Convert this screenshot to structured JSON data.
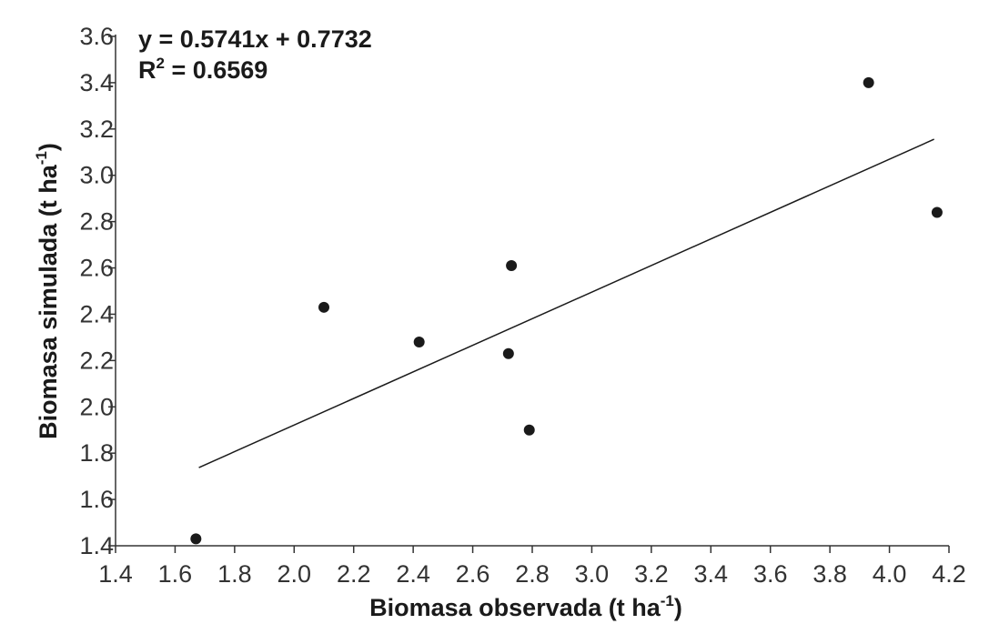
{
  "chart_data": {
    "type": "scatter",
    "title": "",
    "xlabel_main": "Biomasa observada (t ha",
    "xlabel_sup": "-1",
    "xlabel_close": ")",
    "ylabel_main": "Biomasa simulada (t ha",
    "ylabel_sup": "-1",
    "ylabel_close": ")",
    "xlim": [
      1.4,
      4.2
    ],
    "ylim": [
      1.4,
      3.6
    ],
    "xticks": [
      "1.4",
      "1.6",
      "1.8",
      "2.0",
      "2.2",
      "2.4",
      "2.6",
      "2.8",
      "3.0",
      "3.2",
      "3.4",
      "3.6",
      "3.8",
      "4.0",
      "4.2"
    ],
    "yticks": [
      "1.4",
      "1.6",
      "1.8",
      "2.0",
      "2.2",
      "2.4",
      "2.6",
      "2.8",
      "3.0",
      "3.2",
      "3.4",
      "3.6"
    ],
    "points": [
      {
        "x": 1.67,
        "y": 1.43
      },
      {
        "x": 2.1,
        "y": 2.43
      },
      {
        "x": 2.42,
        "y": 2.28
      },
      {
        "x": 2.72,
        "y": 2.23
      },
      {
        "x": 2.73,
        "y": 2.61
      },
      {
        "x": 2.79,
        "y": 1.9
      },
      {
        "x": 3.93,
        "y": 3.4
      },
      {
        "x": 4.16,
        "y": 2.84
      }
    ],
    "trendline": {
      "slope": 0.5741,
      "intercept": 0.7732,
      "x_start": 1.68,
      "x_end": 4.15
    },
    "equation_text": "y = 0.5741x + 0.7732",
    "r2_prefix": "R",
    "r2_sup": "2",
    "r2_value": " = 0.6569",
    "grid": false,
    "colors": {
      "point": "#1a1a1a",
      "line": "#1a1a1a",
      "axis": "#333333"
    }
  }
}
